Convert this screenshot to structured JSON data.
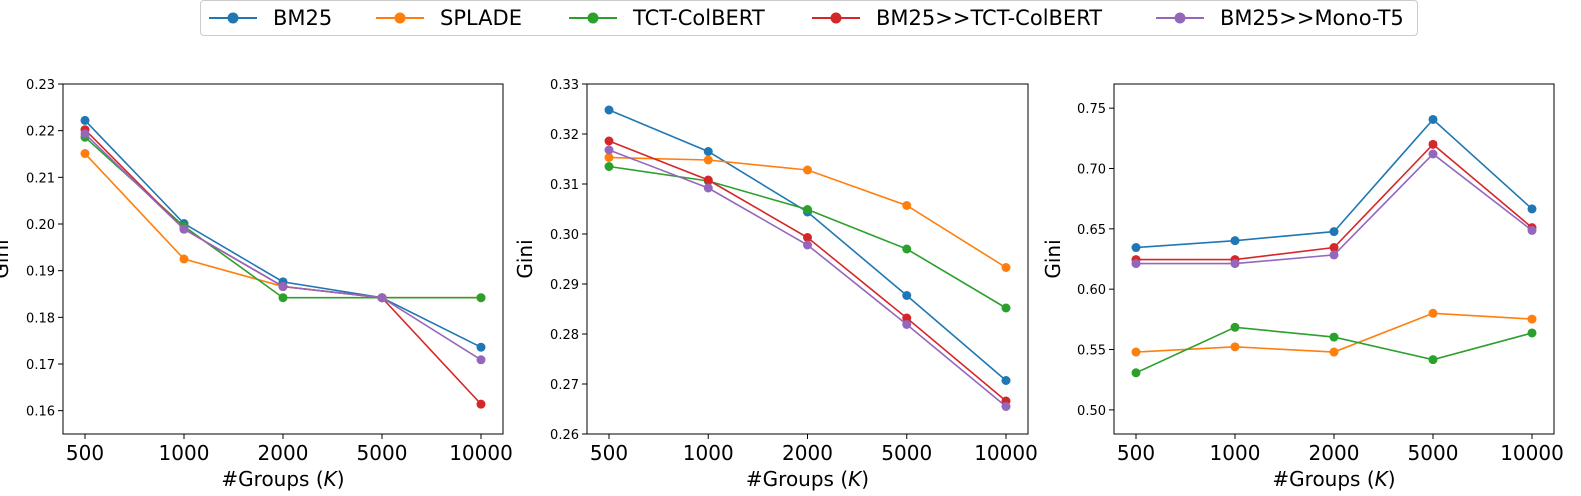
{
  "legend": {
    "items": [
      {
        "label": "BM25",
        "color": "#1f77b4"
      },
      {
        "label": "SPLADE",
        "color": "#ff7f0e"
      },
      {
        "label": "TCT-ColBERT",
        "color": "#2ca02c"
      },
      {
        "label": "BM25>>TCT-ColBERT",
        "color": "#d62728"
      },
      {
        "label": "BM25>>Mono-T5",
        "color": "#9467bd"
      }
    ]
  },
  "chart_data": [
    {
      "type": "line",
      "categories": [
        "500",
        "1000",
        "2000",
        "5000",
        "10000"
      ],
      "xlabel": "#Groups (K)",
      "ylabel": "Gini",
      "ylim": [
        0.155,
        0.23
      ],
      "yticks": [
        "0.16",
        "0.17",
        "0.18",
        "0.19",
        "0.20",
        "0.21",
        "0.22",
        "0.23"
      ],
      "grid": false,
      "series": [
        {
          "name": "BM25",
          "values": [
            0.2222,
            0.2001,
            0.1876,
            0.1842,
            0.1736
          ]
        },
        {
          "name": "SPLADE",
          "values": [
            0.2151,
            0.1925,
            0.1866,
            0.1842,
            0.1842
          ]
        },
        {
          "name": "TCT-ColBERT",
          "values": [
            0.2186,
            0.1995,
            0.1842,
            0.1842,
            0.1842
          ]
        },
        {
          "name": "BM25>>TCT-ColBERT",
          "values": [
            0.2202,
            0.1989,
            0.1866,
            0.1842,
            0.1614
          ]
        },
        {
          "name": "BM25>>Mono-T5",
          "values": [
            0.2193,
            0.1989,
            0.1866,
            0.1842,
            0.1709
          ]
        }
      ]
    },
    {
      "type": "line",
      "categories": [
        "500",
        "1000",
        "2000",
        "5000",
        "10000"
      ],
      "xlabel": "#Groups (K)",
      "ylabel": "Gini",
      "ylim": [
        0.26,
        0.33
      ],
      "yticks": [
        "0.26",
        "0.27",
        "0.28",
        "0.29",
        "0.30",
        "0.31",
        "0.32",
        "0.33"
      ],
      "grid": false,
      "series": [
        {
          "name": "BM25",
          "values": [
            0.3248,
            0.3165,
            0.3044,
            0.2877,
            0.2707
          ]
        },
        {
          "name": "SPLADE",
          "values": [
            0.3153,
            0.3148,
            0.3128,
            0.3057,
            0.2933
          ]
        },
        {
          "name": "TCT-ColBERT",
          "values": [
            0.3135,
            0.3106,
            0.3049,
            0.297,
            0.2852
          ]
        },
        {
          "name": "BM25>>TCT-ColBERT",
          "values": [
            0.3186,
            0.3108,
            0.2993,
            0.2832,
            0.2666
          ]
        },
        {
          "name": "BM25>>Mono-T5",
          "values": [
            0.3168,
            0.3092,
            0.2978,
            0.2819,
            0.2655
          ]
        }
      ]
    },
    {
      "type": "line",
      "categories": [
        "500",
        "1000",
        "2000",
        "5000",
        "10000"
      ],
      "xlabel": "#Groups (K)",
      "ylabel": "Gini",
      "ylim": [
        0.48,
        0.77
      ],
      "yticks": [
        "0.50",
        "0.55",
        "0.60",
        "0.65",
        "0.70",
        "0.75"
      ],
      "grid": false,
      "series": [
        {
          "name": "BM25",
          "values": [
            0.6345,
            0.6402,
            0.6477,
            0.7406,
            0.6665
          ]
        },
        {
          "name": "SPLADE",
          "values": [
            0.5479,
            0.5522,
            0.5479,
            0.58,
            0.5752
          ]
        },
        {
          "name": "TCT-ColBERT",
          "values": [
            0.5307,
            0.5684,
            0.5603,
            0.5416,
            0.5637
          ]
        },
        {
          "name": "BM25>>TCT-ColBERT",
          "values": [
            0.6245,
            0.6245,
            0.6345,
            0.72,
            0.651
          ]
        },
        {
          "name": "BM25>>Mono-T5",
          "values": [
            0.6212,
            0.6212,
            0.6284,
            0.712,
            0.6487
          ]
        }
      ]
    }
  ]
}
